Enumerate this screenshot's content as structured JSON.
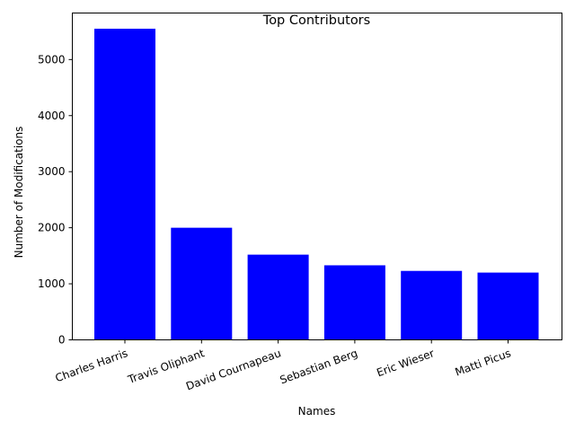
{
  "chart_data": {
    "type": "bar",
    "title": "Top Contributors",
    "xlabel": "Names",
    "ylabel": "Number of Modifications",
    "categories": [
      "Charles Harris",
      "Travis Oliphant",
      "David Cournapeau",
      "Sebastian Berg",
      "Eric Wieser",
      "Matti Picus"
    ],
    "values": [
      5550,
      2000,
      1520,
      1330,
      1230,
      1200
    ],
    "yticks": [
      0,
      1000,
      2000,
      3000,
      4000,
      5000
    ],
    "ylim": [
      0,
      5830
    ],
    "bar_color": "#0000ff",
    "grid": false,
    "legend": false,
    "xtick_rotation": "20 degrees"
  }
}
